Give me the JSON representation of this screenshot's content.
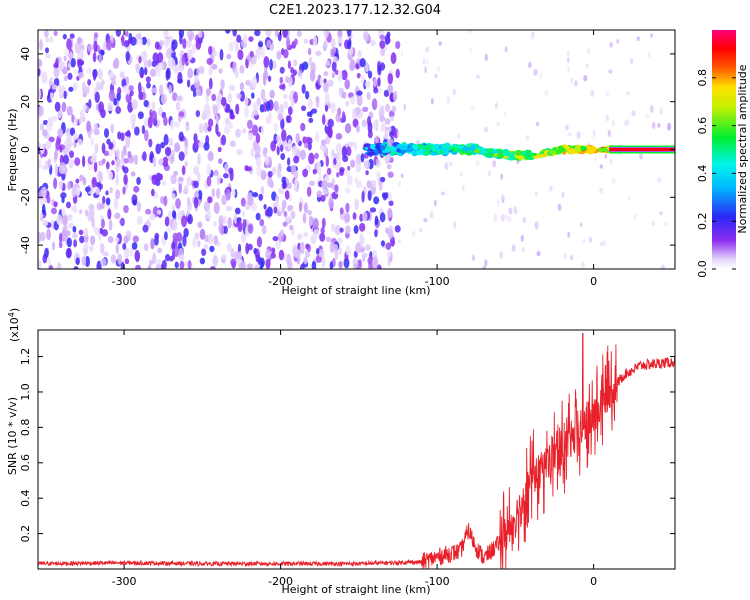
{
  "title": "C2E1.2023.177.12.32.G04",
  "colors": {
    "snr_line": "#e8202a",
    "spectrogram_low": "#7a2cf0",
    "spectrogram_faint": "#d9c7f7",
    "axis": "#000000",
    "background": "#ffffff"
  },
  "chart_data": [
    {
      "type": "heatmap",
      "name": "spectrogram",
      "xlabel": "Height of straight line (km)",
      "ylabel": "Frequency (Hz)",
      "xlim": [
        -355,
        52
      ],
      "ylim": [
        -50,
        50
      ],
      "xticks": [
        -300,
        -200,
        -100,
        0
      ],
      "xtick_labels": [
        "-300",
        "-200",
        "-100",
        "0"
      ],
      "yticks": [
        -40,
        -20,
        0,
        20,
        40
      ],
      "ytick_labels": [
        "-40",
        "-20",
        "0",
        "20",
        "40"
      ],
      "colorbar": {
        "label": "Normalized spectral amplitude",
        "range": [
          0.0,
          1.0
        ],
        "ticks": [
          0.0,
          0.2,
          0.4,
          0.6,
          0.8
        ],
        "tick_labels": [
          "0.0",
          "0.2",
          "0.4",
          "0.6",
          "0.8"
        ],
        "colormap": "rainbow (purple-blue-cyan-green-yellow-red-magenta)"
      },
      "features": {
        "noise_region_x": [
          -355,
          -125
        ],
        "noise_amplitude": 0.1,
        "carrier_frequency_hz": 0,
        "carrier_track_x": [
          -145,
          52
        ],
        "carrier_amplitude_rising_to": 1.0
      }
    },
    {
      "type": "line",
      "name": "snr",
      "xlabel": "Height of straight line (km)",
      "ylabel": "SNR (10 * v/v)",
      "y_multiplier_label": "(x10",
      "y_multiplier_exp": "4",
      "y_multiplier_close": ")",
      "xlim": [
        -355,
        52
      ],
      "ylim": [
        0.0,
        1.35
      ],
      "xticks": [
        -300,
        -200,
        -100,
        0
      ],
      "xtick_labels": [
        "-300",
        "-200",
        "-100",
        "0"
      ],
      "yticks": [
        0.2,
        0.4,
        0.6,
        0.8,
        1.0,
        1.2
      ],
      "ytick_labels": [
        "0.2",
        "0.4",
        "0.6",
        "0.8",
        "1.0",
        "1.2"
      ],
      "series": [
        {
          "values_trend": {
            "x": [
              -355,
              -300,
              -250,
              -200,
              -150,
              -110,
              -95,
              -85,
              -80,
              -75,
              -70,
              -60,
              -50,
              -40,
              -30,
              -20,
              -10,
              -5,
              0,
              10,
              20,
              30,
              52
            ],
            "y": [
              0.03,
              0.035,
              0.03,
              0.03,
              0.03,
              0.04,
              0.08,
              0.1,
              0.22,
              0.12,
              0.06,
              0.15,
              0.3,
              0.5,
              0.6,
              0.68,
              0.75,
              0.8,
              0.85,
              1.0,
              1.1,
              1.15,
              1.17
            ]
          },
          "peak": {
            "x": -7,
            "y": 1.33
          }
        }
      ]
    }
  ]
}
